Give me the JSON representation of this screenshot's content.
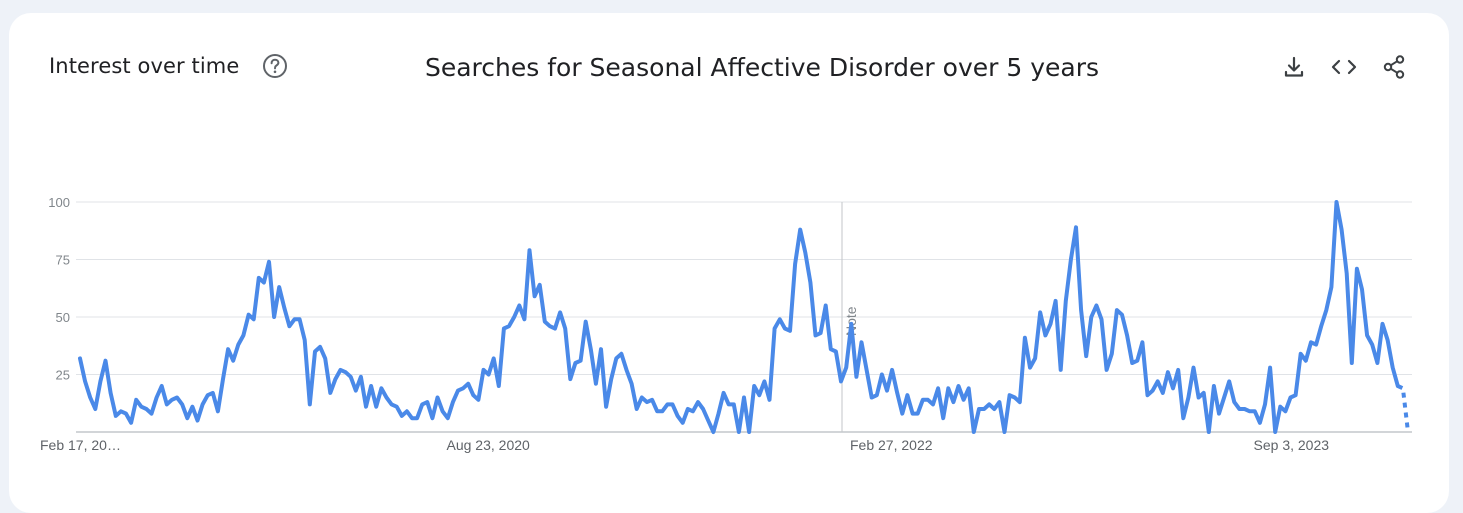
{
  "header": {
    "card_title": "Interest over time",
    "chart_title": "Searches for Seasonal Affective Disorder over 5 years",
    "icons": [
      "help-icon",
      "download-icon",
      "embed-code-icon",
      "share-icon"
    ]
  },
  "chart_data": {
    "type": "line",
    "title": "Searches for Seasonal Affective Disorder over 5 years",
    "xlabel": "",
    "ylabel": "",
    "ylim": [
      0,
      100
    ],
    "y_ticks": [
      "100",
      "75",
      "50",
      "25"
    ],
    "x_tick_labels": [
      "Feb 17, 20…",
      "Aug 23, 2020",
      "Feb 27, 2022",
      "Sep 3, 2023"
    ],
    "grid": true,
    "annotation": "Note",
    "line_color": "#4a89e8",
    "partial_data_last_points": 2,
    "series": [
      {
        "values": [
          32,
          22,
          15,
          10,
          22,
          31,
          17,
          7,
          9,
          8,
          4,
          14,
          11,
          10,
          8,
          15,
          20,
          12,
          14,
          15,
          12,
          6,
          11,
          5,
          12,
          16,
          17,
          9,
          23,
          36,
          31,
          38,
          42,
          51,
          49,
          67,
          65,
          74,
          50,
          63,
          54,
          46,
          49,
          49,
          40,
          12,
          35,
          37,
          32,
          17,
          23,
          27,
          26,
          24,
          18,
          24,
          11,
          20,
          11,
          19,
          15,
          12,
          11,
          7,
          9,
          6,
          6,
          12,
          13,
          6,
          15,
          9,
          6,
          13,
          18,
          19,
          21,
          16,
          14,
          27,
          25,
          32,
          20,
          45,
          46,
          50,
          55,
          49,
          79,
          59,
          64,
          48,
          46,
          45,
          52,
          45,
          23,
          30,
          31,
          48,
          36,
          21,
          36,
          11,
          23,
          32,
          34,
          27,
          21,
          10,
          15,
          13,
          14,
          9,
          9,
          12,
          12,
          7,
          4,
          10,
          9,
          13,
          10,
          5,
          0,
          8,
          17,
          12,
          12,
          0,
          15,
          0,
          20,
          16,
          22,
          14,
          45,
          49,
          45,
          44,
          73,
          88,
          78,
          65,
          42,
          43,
          55,
          36,
          35,
          22,
          28,
          47,
          24,
          39,
          27,
          15,
          16,
          25,
          18,
          27,
          17,
          8,
          16,
          8,
          8,
          14,
          14,
          12,
          19,
          6,
          19,
          13,
          20,
          14,
          19,
          0,
          10,
          10,
          12,
          10,
          13,
          0,
          16,
          15,
          13,
          41,
          28,
          32,
          52,
          42,
          47,
          57,
          27,
          57,
          75,
          89,
          53,
          33,
          50,
          55,
          49,
          27,
          34,
          53,
          51,
          42,
          30,
          31,
          39,
          16,
          18,
          22,
          17,
          26,
          19,
          27,
          6,
          15,
          28,
          15,
          17,
          0,
          20,
          8,
          15,
          22,
          13,
          10,
          10,
          9,
          9,
          4,
          12,
          28,
          0,
          11,
          9,
          15,
          16,
          34,
          31,
          39,
          38,
          46,
          53,
          63,
          100,
          88,
          69,
          30,
          71,
          62,
          42,
          38,
          30,
          47,
          40,
          28,
          20,
          19,
          0
        ]
      }
    ]
  }
}
